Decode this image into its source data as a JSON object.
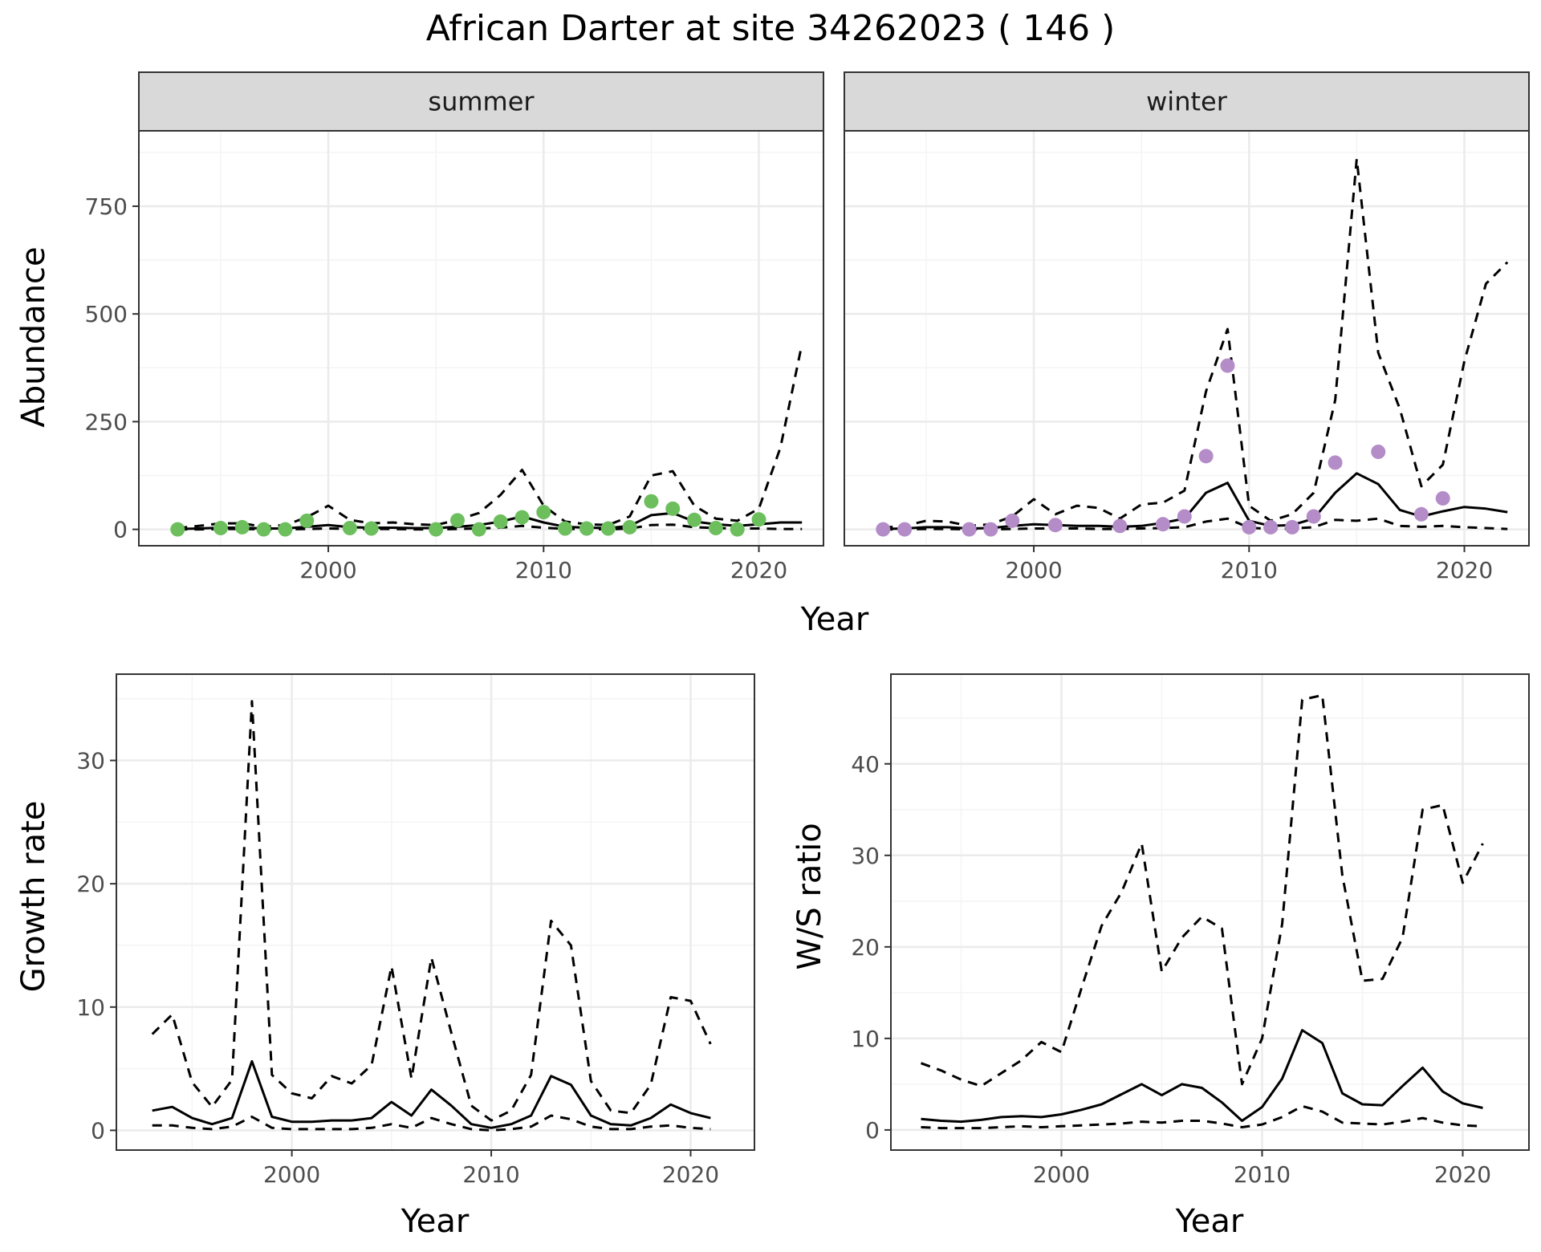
{
  "title": "African Darter at site 34262023 ( 146 )",
  "colors": {
    "summer_points": "#6dbf5e",
    "winter_points": "#b48cc8",
    "lines": "#000000",
    "strip_bg": "#d9d9d9",
    "grid_major": "#ebebeb",
    "grid_minor": "#f4f4f4"
  },
  "chart_data": [
    {
      "type": "line",
      "panel": "abundance-summer",
      "strip": "summer",
      "ylabel": "Abundance",
      "xlabel": "Year",
      "xlim": [
        1991.2,
        2023.0
      ],
      "ylim": [
        -38,
        925
      ],
      "xticks": [
        2000,
        2010,
        2020
      ],
      "yticks": [
        0,
        250,
        500,
        750
      ],
      "x": [
        1993,
        1994,
        1995,
        1996,
        1997,
        1998,
        1999,
        2000,
        2001,
        2002,
        2003,
        2004,
        2005,
        2006,
        2007,
        2008,
        2009,
        2010,
        2011,
        2012,
        2013,
        2014,
        2015,
        2016,
        2017,
        2018,
        2019,
        2020,
        2021,
        2022
      ],
      "series": [
        {
          "role": "estimate",
          "style": "solid",
          "values": [
            1,
            2,
            4,
            4,
            2,
            2,
            6,
            10,
            5,
            4,
            4,
            3,
            3,
            6,
            10,
            18,
            30,
            16,
            6,
            4,
            3,
            8,
            33,
            38,
            18,
            12,
            8,
            12,
            16,
            16
          ]
        },
        {
          "role": "upper",
          "style": "dashed",
          "values": [
            3,
            8,
            14,
            14,
            6,
            10,
            28,
            55,
            22,
            14,
            16,
            12,
            10,
            22,
            38,
            80,
            138,
            55,
            18,
            12,
            10,
            30,
            125,
            135,
            55,
            25,
            20,
            48,
            190,
            430
          ]
        },
        {
          "role": "lower",
          "style": "dashed",
          "values": [
            0,
            0,
            1,
            1,
            0,
            0,
            1,
            2,
            1,
            1,
            1,
            0,
            0,
            1,
            2,
            4,
            8,
            4,
            1,
            1,
            0,
            2,
            10,
            11,
            5,
            3,
            2,
            2,
            1,
            1
          ]
        }
      ],
      "points": {
        "x": [
          1993,
          1995,
          1996,
          1997,
          1998,
          1999,
          2001,
          2002,
          2005,
          2006,
          2007,
          2008,
          2009,
          2010,
          2011,
          2012,
          2013,
          2014,
          2015,
          2016,
          2017,
          2018,
          2019,
          2020
        ],
        "y": [
          0,
          3,
          5,
          0,
          0,
          20,
          3,
          2,
          0,
          21,
          0,
          18,
          28,
          40,
          2,
          2,
          2,
          5,
          65,
          48,
          22,
          3,
          0,
          23
        ]
      }
    },
    {
      "type": "line",
      "panel": "abundance-winter",
      "strip": "winter",
      "xlabel": "Year",
      "xlim": [
        1991.2,
        2023.0
      ],
      "ylim": [
        -38,
        925
      ],
      "xticks": [
        2000,
        2010,
        2020
      ],
      "yticks": [
        0,
        250,
        500,
        750
      ],
      "x": [
        1993,
        1994,
        1995,
        1996,
        1997,
        1998,
        1999,
        2000,
        2001,
        2002,
        2003,
        2004,
        2005,
        2006,
        2007,
        2008,
        2009,
        2010,
        2011,
        2012,
        2013,
        2014,
        2015,
        2016,
        2017,
        2018,
        2019,
        2020,
        2021,
        2022
      ],
      "series": [
        {
          "role": "estimate",
          "style": "solid",
          "values": [
            1,
            2,
            5,
            5,
            2,
            3,
            8,
            12,
            10,
            8,
            8,
            6,
            8,
            15,
            25,
            85,
            108,
            20,
            8,
            10,
            25,
            85,
            130,
            105,
            45,
            30,
            42,
            52,
            48,
            40
          ]
        },
        {
          "role": "upper",
          "style": "dashed",
          "values": [
            4,
            8,
            20,
            18,
            8,
            12,
            30,
            70,
            35,
            55,
            50,
            25,
            58,
            62,
            90,
            320,
            465,
            55,
            20,
            35,
            85,
            300,
            860,
            410,
            280,
            100,
            150,
            390,
            570,
            620
          ]
        },
        {
          "role": "lower",
          "style": "dashed",
          "values": [
            0,
            0,
            1,
            1,
            0,
            0,
            1,
            2,
            2,
            2,
            1,
            1,
            2,
            3,
            5,
            18,
            25,
            4,
            1,
            2,
            5,
            22,
            20,
            25,
            8,
            6,
            8,
            5,
            3,
            1
          ]
        }
      ],
      "points": {
        "x": [
          1993,
          1994,
          1997,
          1998,
          1999,
          2001,
          2004,
          2006,
          2007,
          2008,
          2009,
          2010,
          2011,
          2012,
          2013,
          2014,
          2016,
          2018,
          2019
        ],
        "y": [
          0,
          0,
          0,
          0,
          20,
          10,
          8,
          12,
          30,
          170,
          380,
          5,
          5,
          5,
          30,
          155,
          180,
          35,
          72
        ]
      }
    },
    {
      "type": "line",
      "panel": "growth-rate",
      "ylabel": "Growth rate",
      "xlabel": "Year",
      "xlim": [
        1991.2,
        2023.2
      ],
      "ylim": [
        -1.6,
        37.0
      ],
      "xticks": [
        2000,
        2010,
        2020
      ],
      "yticks": [
        0,
        10,
        20,
        30
      ],
      "x": [
        1993,
        1994,
        1995,
        1996,
        1997,
        1998,
        1999,
        2000,
        2001,
        2002,
        2003,
        2004,
        2005,
        2006,
        2007,
        2008,
        2009,
        2010,
        2011,
        2012,
        2013,
        2014,
        2015,
        2016,
        2017,
        2018,
        2019,
        2020,
        2021
      ],
      "series": [
        {
          "role": "estimate",
          "style": "solid",
          "values": [
            1.6,
            1.9,
            1.0,
            0.5,
            1.0,
            5.6,
            1.1,
            0.7,
            0.7,
            0.8,
            0.8,
            1.0,
            2.3,
            1.2,
            3.3,
            2.0,
            0.5,
            0.2,
            0.5,
            1.2,
            4.4,
            3.7,
            1.2,
            0.5,
            0.4,
            1.0,
            2.1,
            1.4,
            1.0
          ]
        },
        {
          "role": "upper",
          "style": "dashed",
          "values": [
            7.8,
            9.4,
            3.9,
            1.9,
            4.1,
            34.8,
            4.5,
            3.0,
            2.6,
            4.4,
            3.8,
            5.3,
            13.3,
            4.2,
            14.0,
            7.9,
            2.0,
            0.8,
            1.6,
            4.5,
            17.0,
            15.0,
            4.0,
            1.6,
            1.4,
            3.7,
            10.8,
            10.5,
            7.0
          ]
        },
        {
          "role": "lower",
          "style": "dashed",
          "values": [
            0.4,
            0.4,
            0.2,
            0.1,
            0.3,
            1.1,
            0.2,
            0.1,
            0.1,
            0.1,
            0.1,
            0.2,
            0.5,
            0.2,
            1.0,
            0.5,
            0.1,
            0.0,
            0.1,
            0.3,
            1.2,
            0.9,
            0.3,
            0.1,
            0.1,
            0.3,
            0.4,
            0.2,
            0.1
          ]
        }
      ]
    },
    {
      "type": "line",
      "panel": "ws-ratio",
      "ylabel": "W/S ratio",
      "xlabel": "Year",
      "xlim": [
        1991.5,
        2023.3
      ],
      "ylim": [
        -2.2,
        49.8
      ],
      "xticks": [
        2000,
        2010,
        2020
      ],
      "yticks": [
        0,
        10,
        20,
        30,
        40
      ],
      "x": [
        1993,
        1994,
        1995,
        1996,
        1997,
        1998,
        1999,
        2000,
        2001,
        2002,
        2003,
        2004,
        2005,
        2006,
        2007,
        2008,
        2009,
        2010,
        2011,
        2012,
        2013,
        2014,
        2015,
        2016,
        2017,
        2018,
        2019,
        2020,
        2021
      ],
      "series": [
        {
          "role": "estimate",
          "style": "solid",
          "values": [
            1.2,
            1.0,
            0.9,
            1.1,
            1.4,
            1.5,
            1.4,
            1.7,
            2.2,
            2.8,
            3.9,
            5.0,
            3.8,
            5.0,
            4.6,
            3.0,
            1.0,
            2.5,
            5.6,
            10.9,
            9.5,
            4.0,
            2.8,
            2.7,
            4.8,
            6.8,
            4.2,
            2.9,
            2.4
          ]
        },
        {
          "role": "upper",
          "style": "dashed",
          "values": [
            7.3,
            6.5,
            5.5,
            4.8,
            6.2,
            7.6,
            9.6,
            8.5,
            15.5,
            22.3,
            26.0,
            31.3,
            17.3,
            21.0,
            23.3,
            22.0,
            5.0,
            10.0,
            22.5,
            47.0,
            47.5,
            27.8,
            16.3,
            16.5,
            21.0,
            35.0,
            35.5,
            27.0,
            31.3
          ]
        },
        {
          "role": "lower",
          "style": "dashed",
          "values": [
            0.3,
            0.2,
            0.2,
            0.2,
            0.3,
            0.4,
            0.3,
            0.4,
            0.5,
            0.6,
            0.7,
            0.9,
            0.8,
            1.0,
            1.0,
            0.7,
            0.3,
            0.6,
            1.4,
            2.6,
            2.0,
            0.8,
            0.7,
            0.6,
            0.9,
            1.3,
            0.8,
            0.5,
            0.4
          ]
        }
      ]
    }
  ]
}
